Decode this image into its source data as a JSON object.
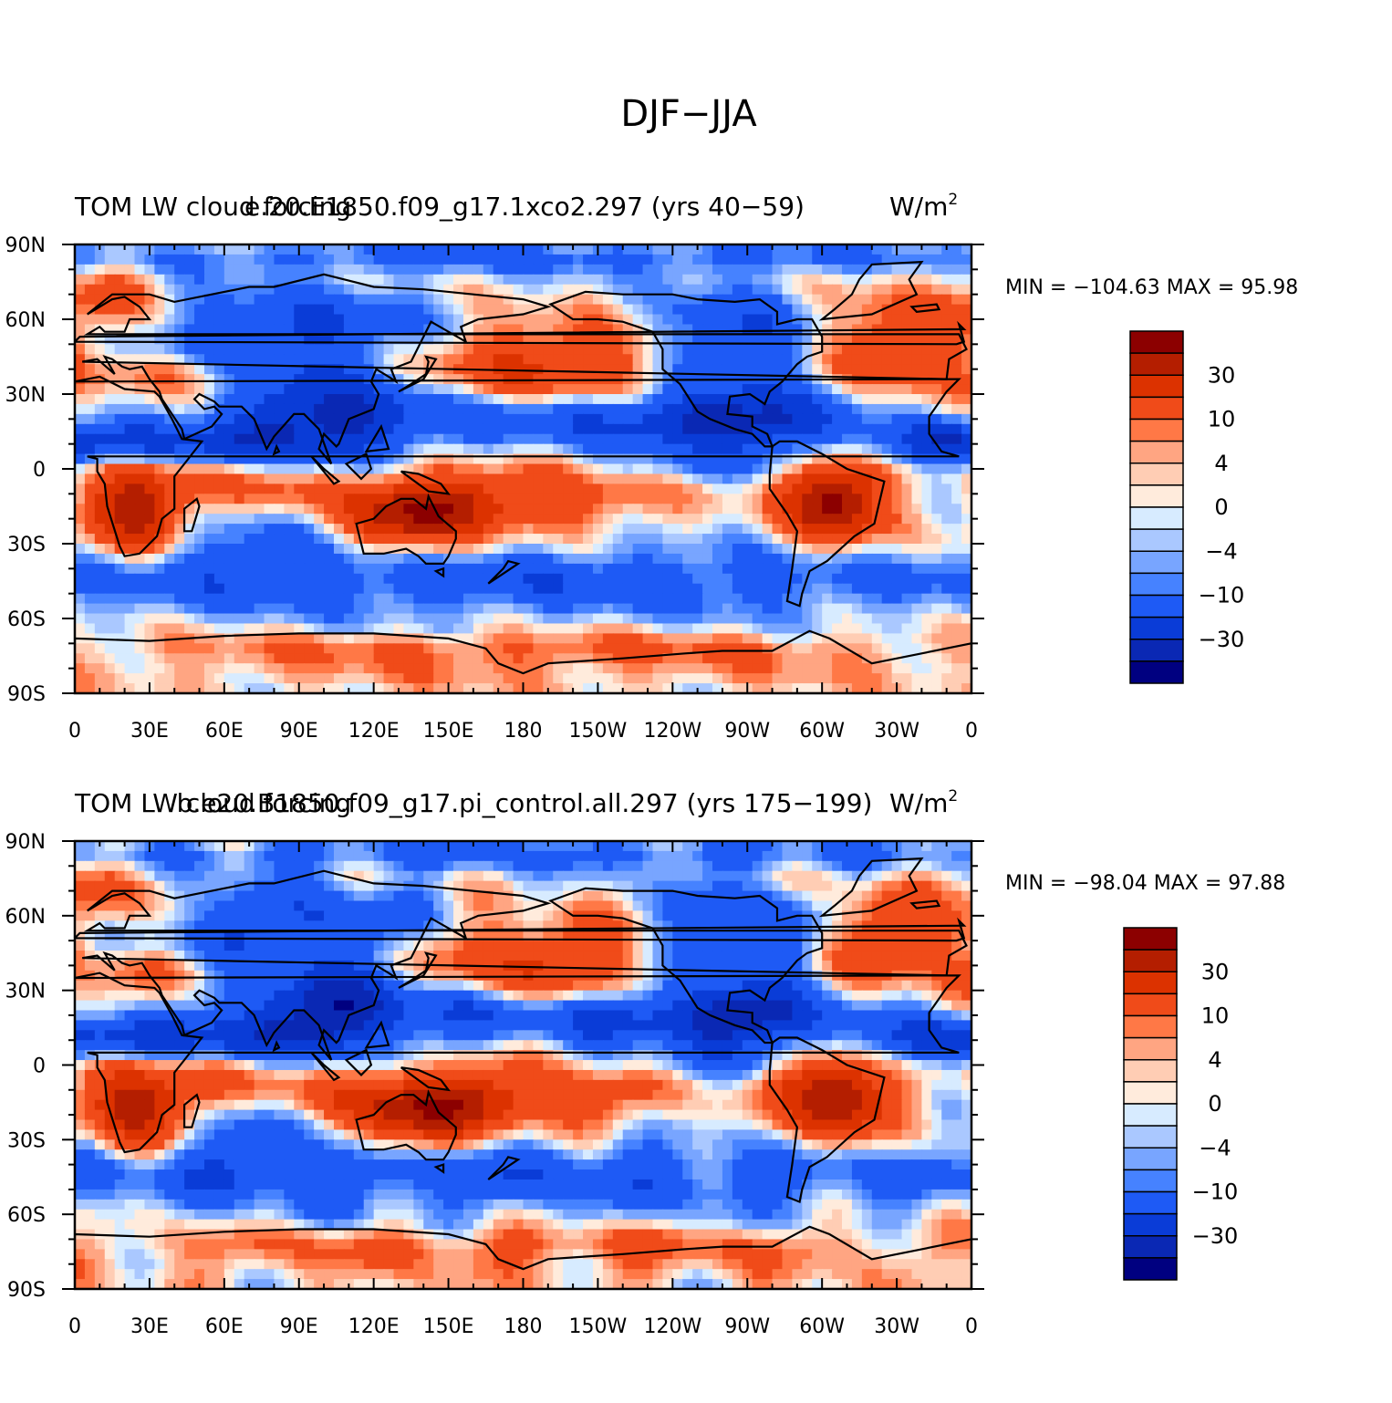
{
  "main_title": "DJF−JJA",
  "colors": [
    "#000080",
    "#0A28B4",
    "#0A3CD7",
    "#1E5AF5",
    "#4682FF",
    "#78A5FF",
    "#AAC8FF",
    "#D7EBFF",
    "#FFEBDC",
    "#FFCDB4",
    "#FFA582",
    "#FF7846",
    "#F04B19",
    "#DC3200",
    "#B41E00",
    "#8C0000"
  ],
  "panels": [
    {
      "left_title": "TOM LW cloud forcing",
      "center_title": "e.20.E1850.f09_g17.1xco2.297 (yrs 40−59)",
      "units": "W/m",
      "units_sup": "2",
      "min_max": "MIN = −104.63  MAX =  95.98",
      "lat_labels": [
        "90N",
        "60N",
        "30N",
        "0",
        "30S",
        "60S",
        "90S"
      ],
      "lon_labels": [
        "0",
        "30E",
        "60E",
        "90E",
        "120E",
        "150E",
        "180",
        "150W",
        "120W",
        "90W",
        "60W",
        "30W",
        "0"
      ],
      "colorbar_labels": [
        "30",
        "10",
        "4",
        "0",
        "−4",
        "−10",
        "−30"
      ]
    },
    {
      "left_title": "TOM LW cloud forcing",
      "center_title": "b.e20.B1850.f09_g17.pi_control.all.297 (yrs 175−199)",
      "units": "W/m",
      "units_sup": "2",
      "min_max": "MIN = −98.04  MAX =  97.88",
      "lat_labels": [
        "90N",
        "60N",
        "30N",
        "0",
        "30S",
        "60S",
        "90S"
      ],
      "lon_labels": [
        "0",
        "30E",
        "60E",
        "90E",
        "120E",
        "150E",
        "180",
        "150W",
        "120W",
        "90W",
        "60W",
        "30W",
        "0"
      ],
      "colorbar_labels": [
        "30",
        "10",
        "4",
        "0",
        "−4",
        "−10",
        "−30"
      ]
    }
  ]
}
